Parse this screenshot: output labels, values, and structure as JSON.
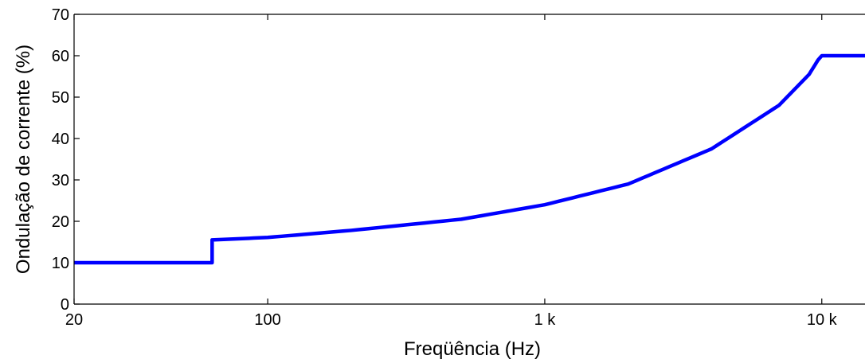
{
  "chart_data": {
    "type": "line",
    "title": "",
    "xlabel": "Freqüência (Hz)",
    "ylabel": "Ondulação de corrente (%)",
    "x_scale": "log",
    "xlim": [
      20,
      15000
    ],
    "ylim": [
      0,
      70
    ],
    "grid": false,
    "x_ticks": [
      {
        "value": 20,
        "label": "20"
      },
      {
        "value": 100,
        "label": "100"
      },
      {
        "value": 1000,
        "label": "1 k"
      },
      {
        "value": 10000,
        "label": "10 k"
      }
    ],
    "y_ticks": [
      {
        "value": 0,
        "label": "0"
      },
      {
        "value": 10,
        "label": "10"
      },
      {
        "value": 20,
        "label": "20"
      },
      {
        "value": 30,
        "label": "30"
      },
      {
        "value": 40,
        "label": "40"
      },
      {
        "value": 50,
        "label": "50"
      },
      {
        "value": 60,
        "label": "60"
      },
      {
        "value": 70,
        "label": "70"
      }
    ],
    "series": [
      {
        "color": "#0000ff",
        "x": [
          20,
          63,
          63,
          100,
          200,
          500,
          1000,
          2000,
          4000,
          7000,
          9000,
          9700,
          10000,
          15000
        ],
        "y": [
          10,
          10,
          15.5,
          16.1,
          17.8,
          20.5,
          24.0,
          29.0,
          37.5,
          48.0,
          55.5,
          59.0,
          60.0,
          60.0
        ]
      }
    ]
  }
}
